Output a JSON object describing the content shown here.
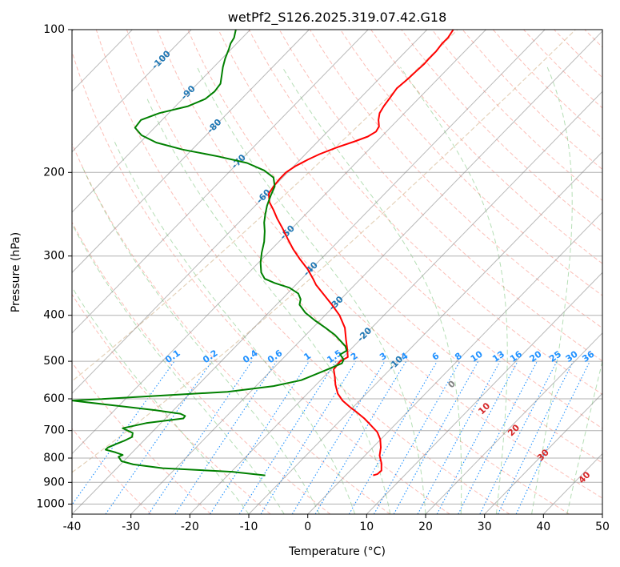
{
  "chart_data": {
    "type": "line",
    "subtype": "skew-t log-p",
    "title": "wetPf2_S126.2025.319.07.42.G18",
    "xlabel": "Temperature (°C)",
    "ylabel": "Pressure (hPa)",
    "xlim": [
      -40,
      50
    ],
    "ylim": [
      1050,
      100
    ],
    "x_ticks": [
      "-40",
      "-30",
      "-20",
      "-10",
      "0",
      "10",
      "20",
      "30",
      "40",
      "50"
    ],
    "y_ticks": [
      "100",
      "200",
      "300",
      "400",
      "500",
      "600",
      "700",
      "800",
      "900",
      "1000"
    ],
    "colors": {
      "temperature": "#ff0000",
      "dewpoint": "#008000",
      "isotherm": "#808080",
      "isobar": "#b0b0b0",
      "dry_adiabat": "#fa8072",
      "moist_adiabat": "#2ca02c",
      "mixing_ratio": "#1e90ff",
      "isotherm_label": "#1f77b4",
      "dry_label": "#d62728",
      "zero_label": "#808080",
      "reference_curve": "#d2b48c"
    },
    "series": [
      {
        "name": "Temperature",
        "points": [
          [
            11.1,
            870
          ],
          [
            11.8,
            865
          ],
          [
            12.5,
            850
          ],
          [
            12.5,
            820
          ],
          [
            12.2,
            790
          ],
          [
            12.4,
            760
          ],
          [
            12.3,
            730
          ],
          [
            11.8,
            705
          ],
          [
            10.6,
            680
          ],
          [
            9.6,
            660
          ],
          [
            8.3,
            640
          ],
          [
            7.2,
            625
          ],
          [
            5.9,
            605
          ],
          [
            5.1,
            585
          ],
          [
            4.7,
            560
          ],
          [
            4.6,
            540
          ],
          [
            4.4,
            520
          ],
          [
            5.5,
            500
          ],
          [
            6.8,
            490
          ],
          [
            6.7,
            470
          ],
          [
            6.5,
            450
          ],
          [
            6.3,
            425
          ],
          [
            5.4,
            400
          ],
          [
            4.1,
            380
          ],
          [
            2.6,
            360
          ],
          [
            1.4,
            345
          ],
          [
            0.9,
            335
          ],
          [
            0.0,
            320
          ],
          [
            -1.3,
            305
          ],
          [
            -2.5,
            290
          ],
          [
            -3.4,
            276
          ],
          [
            -4.3,
            262
          ],
          [
            -5.2,
            250
          ],
          [
            -5.8,
            240
          ],
          [
            -6.5,
            231
          ],
          [
            -6.6,
            222
          ],
          [
            -5.8,
            214
          ],
          [
            -4.7,
            206
          ],
          [
            -3.7,
            200
          ],
          [
            -2.1,
            194
          ],
          [
            0.0,
            188
          ],
          [
            2.0,
            183
          ],
          [
            5.0,
            177
          ],
          [
            8.0,
            172
          ],
          [
            10.2,
            168
          ],
          [
            11.6,
            164
          ],
          [
            12.1,
            160
          ],
          [
            12.0,
            155
          ],
          [
            12.2,
            150
          ],
          [
            12.9,
            145
          ],
          [
            14.0,
            139
          ],
          [
            15.1,
            133
          ],
          [
            17.0,
            127
          ],
          [
            18.5,
            122
          ],
          [
            19.8,
            118
          ],
          [
            20.6,
            115
          ],
          [
            21.8,
            111
          ],
          [
            22.8,
            107
          ],
          [
            23.8,
            104
          ],
          [
            24.7,
            100
          ]
        ]
      },
      {
        "name": "Dewpoint",
        "points": [
          [
            -7.2,
            870
          ],
          [
            -12.8,
            855
          ],
          [
            -24.6,
            840
          ],
          [
            -29.6,
            825
          ],
          [
            -31.6,
            812
          ],
          [
            -32.1,
            795
          ],
          [
            -31.4,
            788
          ],
          [
            -32.6,
            778
          ],
          [
            -34.3,
            768
          ],
          [
            -33.9,
            760
          ],
          [
            -32.6,
            748
          ],
          [
            -31.2,
            736
          ],
          [
            -29.8,
            722
          ],
          [
            -29.7,
            708
          ],
          [
            -31.4,
            692
          ],
          [
            -27.4,
            675
          ],
          [
            -21.1,
            660
          ],
          [
            -20.8,
            652
          ],
          [
            -21.6,
            645
          ],
          [
            -25.8,
            634
          ],
          [
            -33.6,
            618
          ],
          [
            -38.6,
            608
          ],
          [
            -40.0,
            605
          ],
          [
            -35.3,
            601
          ],
          [
            -24.4,
            590
          ],
          [
            -13.6,
            580
          ],
          [
            -5.8,
            564
          ],
          [
            -1.1,
            548
          ],
          [
            3.4,
            520
          ],
          [
            5.8,
            505
          ],
          [
            6.1,
            496
          ],
          [
            5.5,
            484
          ],
          [
            6.6,
            475
          ],
          [
            6.4,
            465
          ],
          [
            5.7,
            455
          ],
          [
            4.6,
            440
          ],
          [
            3.0,
            425
          ],
          [
            1.2,
            410
          ],
          [
            -0.4,
            395
          ],
          [
            -1.4,
            380
          ],
          [
            -1.2,
            370
          ],
          [
            -1.6,
            360
          ],
          [
            -3.1,
            350
          ],
          [
            -5.6,
            342
          ],
          [
            -7.3,
            335
          ],
          [
            -7.9,
            325
          ],
          [
            -8.0,
            310
          ],
          [
            -7.8,
            295
          ],
          [
            -7.4,
            280
          ],
          [
            -7.3,
            266
          ],
          [
            -7.4,
            255
          ],
          [
            -7.2,
            245
          ],
          [
            -6.9,
            235
          ],
          [
            -6.3,
            224
          ],
          [
            -5.6,
            214
          ],
          [
            -5.8,
            205
          ],
          [
            -7.4,
            198
          ],
          [
            -10.3,
            191
          ],
          [
            -15.2,
            185
          ],
          [
            -21.2,
            179
          ],
          [
            -25.7,
            173
          ],
          [
            -28.2,
            167
          ],
          [
            -29.3,
            161
          ],
          [
            -28.3,
            155
          ],
          [
            -25.2,
            150
          ],
          [
            -20.3,
            145
          ],
          [
            -17.4,
            140
          ],
          [
            -15.8,
            135
          ],
          [
            -14.8,
            130
          ],
          [
            -14.6,
            125
          ],
          [
            -14.4,
            120
          ],
          [
            -14.0,
            115
          ],
          [
            -13.4,
            110
          ],
          [
            -13.1,
            107
          ],
          [
            -12.5,
            104
          ],
          [
            -12.2,
            100
          ]
        ]
      }
    ],
    "isotherm_labels": [
      "-100",
      "-90",
      "-80",
      "-70",
      "-60",
      "-50",
      "-40",
      "-30",
      "-20",
      "-10"
    ],
    "isotherm_label_points": [
      [
        -100,
        116
      ],
      [
        -90,
        136
      ],
      [
        -80,
        160
      ],
      [
        -70,
        190
      ],
      [
        -60,
        225
      ],
      [
        -50,
        268
      ],
      [
        -40,
        320
      ],
      [
        -30,
        378
      ],
      [
        -20,
        440
      ],
      [
        -10,
        505
      ]
    ],
    "mixing_ratio_labels": [
      "0.1",
      "0.2",
      "0.4",
      "0.6",
      "1",
      "1.5",
      "2",
      "3",
      "4",
      "6",
      "8",
      "10",
      "13",
      "16",
      "20",
      "25",
      "30",
      "36"
    ],
    "mixing_ratio_values": [
      0.1,
      0.2,
      0.4,
      0.6,
      1,
      1.5,
      2,
      3,
      4,
      6,
      8,
      10,
      13,
      16,
      20,
      25,
      30,
      36
    ],
    "dry_adiabat_labels": [
      "0",
      "10",
      "20",
      "30",
      "40"
    ],
    "dry_adiabat_label_points": [
      [
        24.5,
        560
      ],
      [
        30,
        630
      ],
      [
        35,
        700
      ],
      [
        40,
        790
      ],
      [
        47,
        880
      ]
    ]
  }
}
